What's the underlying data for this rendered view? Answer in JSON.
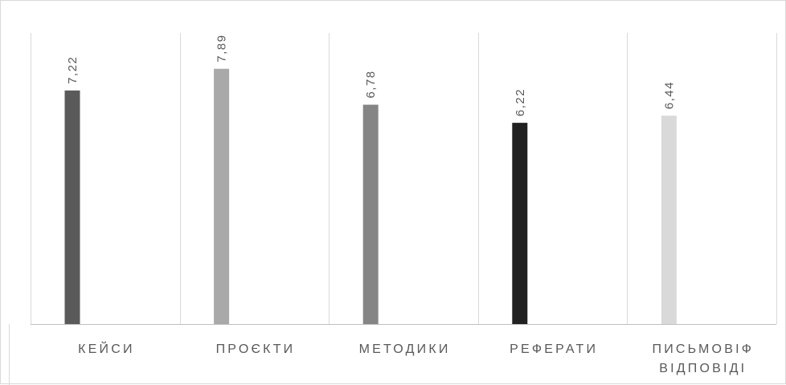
{
  "chart_data": {
    "type": "bar",
    "categories": [
      [
        "КЕЙСИ"
      ],
      [
        "ПРОЄКТИ"
      ],
      [
        "МЕТОДИКИ"
      ],
      [
        "РЕФЕРАТИ"
      ],
      [
        "ПИСЬМОВІФ",
        "ВІДПОВІДІ"
      ]
    ],
    "values": [
      7.22,
      7.89,
      6.78,
      6.22,
      6.44
    ],
    "data_labels": [
      "7,22",
      "7,89",
      "6,78",
      "6,22",
      "6,44"
    ],
    "bar_colors": [
      "#5a5a5a",
      "#a9a9a9",
      "#858585",
      "#212121",
      "#d9d9d9"
    ],
    "gridline_color": "#d9d9d9",
    "axis_color": "#bfbfbf",
    "title": "",
    "xlabel": "",
    "ylabel": "",
    "ylim": [
      0,
      9
    ],
    "grid": true,
    "legend": "none"
  }
}
